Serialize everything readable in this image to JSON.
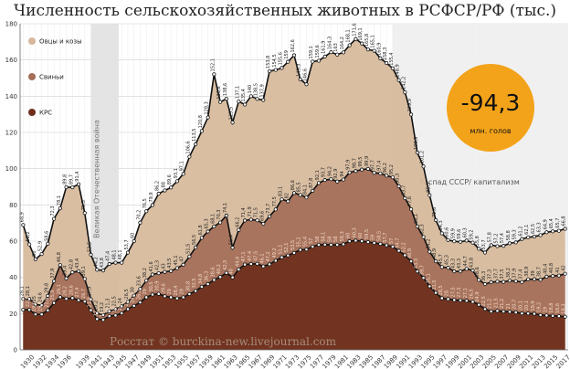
{
  "chart_data": {
    "type": "area",
    "stacked": true,
    "title": "Численность сельскохозяйственных животных в РСФСР/РФ (тыс.)",
    "ylim": [
      0,
      180
    ],
    "yticks": [
      0,
      20,
      40,
      60,
      80,
      100,
      120,
      140,
      160,
      180
    ],
    "xlim": [
      1929.5,
      2018.5
    ],
    "xticks": [
      1930,
      1932,
      1934,
      1936,
      1939,
      1941,
      1943,
      1945,
      1947,
      1949,
      1951,
      1953,
      1955,
      1957,
      1959,
      1961,
      1963,
      1965,
      1967,
      1969,
      1971,
      1973,
      1975,
      1977,
      1979,
      1981,
      1983,
      1985,
      1987,
      1989,
      1991,
      1993,
      1995,
      1997,
      1999,
      2001,
      2003,
      2005,
      2007,
      2009,
      2011,
      2013,
      2015,
      2017
    ],
    "grid": true,
    "legend_position": "left",
    "legend": [
      "Овцы и козы",
      "Свиньи",
      "КРС"
    ],
    "series_colors": [
      "#d6b99b",
      "#a56e58",
      "#6e2f1c"
    ],
    "x": [
      1930,
      1931,
      1932,
      1933,
      1934,
      1935,
      1936,
      1937,
      1938,
      1939,
      1940,
      1941,
      1942,
      1943,
      1944,
      1945,
      1946,
      1947,
      1948,
      1949,
      1950,
      1951,
      1952,
      1953,
      1954,
      1955,
      1956,
      1957,
      1958,
      1959,
      1960,
      1961,
      1962,
      1963,
      1964,
      1965,
      1966,
      1967,
      1968,
      1969,
      1970,
      1971,
      1972,
      1973,
      1974,
      1975,
      1976,
      1977,
      1978,
      1979,
      1980,
      1981,
      1982,
      1983,
      1984,
      1985,
      1986,
      1987,
      1988,
      1989,
      1990,
      1991,
      1992,
      1993,
      1994,
      1995,
      1996,
      1997,
      1998,
      1999,
      2000,
      2001,
      2002,
      2003,
      2004,
      2005,
      2006,
      2007,
      2008,
      2009,
      2010,
      2011,
      2012,
      2013,
      2014,
      2015,
      2016,
      2017,
      2018
    ],
    "series": [
      {
        "name": "КРС",
        "values": [
          22.1,
          22.1,
          19.6,
          19.6,
          21.8,
          25.9,
          29.1,
          28.2,
          28.6,
          27.4,
          26.7,
          21.9,
          17.0,
          16.6,
          18.6,
          19.0,
          20.2,
          22.5,
          24.3,
          26.2,
          29.0,
          30.5,
          30.9,
          29.6,
          29.0,
          28.4,
          29.0,
          30.8,
          32.5,
          34.8,
          36.3,
          38.6,
          40.2,
          42.5,
          40.0,
          44.4,
          47.1,
          47.4,
          47.5,
          46.1,
          47.2,
          49.2,
          51.1,
          52.1,
          53.5,
          55.2,
          55.4,
          57.0,
          58.0,
          58.1,
          58.0,
          58.0,
          58.3,
          60.0,
          60.3,
          60.0,
          59.5,
          59.0,
          58.5,
          57.7,
          57.0,
          54.7,
          52.2,
          48.9,
          43.3,
          39.7,
          35.1,
          31.5,
          28.5,
          28.0,
          27.5,
          27.3,
          27.1,
          26.5,
          24.9,
          22.5,
          21.2,
          21.5,
          21.2,
          21.0,
          20.7,
          20.1,
          20.1,
          19.9,
          19.2,
          19.0,
          18.8,
          18.6,
          18.3
        ]
      },
      {
        "name": "Свиньи",
        "values": [
          6.0,
          6.0,
          5.4,
          5.0,
          8.0,
          12.0,
          17.7,
          11.2,
          14.2,
          16.0,
          12.4,
          6.0,
          3.2,
          2.6,
          2.7,
          3.5,
          3.8,
          4.0,
          5.7,
          7.4,
          9.2,
          11.1,
          11.4,
          13.4,
          14.5,
          16.7,
          18.0,
          20.7,
          24.0,
          27.0,
          29.0,
          29.5,
          30.1,
          31.6,
          16.4,
          21.8,
          24.3,
          24.5,
          24.0,
          23.5,
          26.5,
          28.3,
          32.0,
          29.9,
          33.1,
          30.3,
          28.7,
          30.8,
          34.1,
          35.6,
          36.2,
          34.9,
          35.7,
          37.9,
          38.4,
          39.5,
          40.4,
          38.7,
          38.9,
          38.5,
          38.2,
          35.6,
          31.5,
          28.7,
          24.8,
          22.6,
          19.1,
          17.4,
          17.2,
          17.3,
          15.8,
          16.0,
          17.6,
          17.3,
          13.7,
          13.8,
          16.1,
          16.2,
          16.3,
          17.2,
          17.2,
          17.3,
          18.8,
          19.1,
          19.5,
          21.4,
          22.0,
          22.4,
          23.7
        ]
      },
      {
        "name": "Овцы и козы",
        "values": [
          40.8,
          30.1,
          25.0,
          28.3,
          28.8,
          34.4,
          31.3,
          50.4,
          46.9,
          48.0,
          36.4,
          24.6,
          24.0,
          24.6,
          26.1,
          25.6,
          24.1,
          27.2,
          30.0,
          36.6,
          38.3,
          38.3,
          43.9,
          45.0,
          46.1,
          48.0,
          50.1,
          55.1,
          57.0,
          59.0,
          63.0,
          84.0,
          66.5,
          64.5,
          69.1,
          70.9,
          64.0,
          68.1,
          67.0,
          68.3,
          80.1,
          77.0,
          72.5,
          77.0,
          76.0,
          63.8,
          62.5,
          71.3,
          67.5,
          68.2,
          70.1,
          70.1,
          70.2,
          70.2,
          72.9,
          69.6,
          65.9,
          67.4,
          63.5,
          62.1,
          60.2,
          58.6,
          58.5,
          52.3,
          40.8,
          38.9,
          31.1,
          22.7,
          18.6,
          15.3,
          16.6,
          16.3,
          15.6,
          15.4,
          17.2,
          17.4,
          20.5,
          19.5,
          19.9,
          20.6,
          21.4,
          23.8,
          23.2,
          23.5,
          24.6,
          24.5,
          24.6,
          24.7,
          24.8
        ]
      }
    ],
    "bands": [
      {
        "from": 1941,
        "to": 1945,
        "label": "Великая Отечественная война"
      },
      {
        "from": 1990,
        "to": 2018,
        "label": "Распад СССР/ капитализм"
      }
    ]
  },
  "badge": {
    "value": "-94,3",
    "unit": "млн. голов"
  },
  "watermark": "Росстат © burckina-new.livejournal.com"
}
